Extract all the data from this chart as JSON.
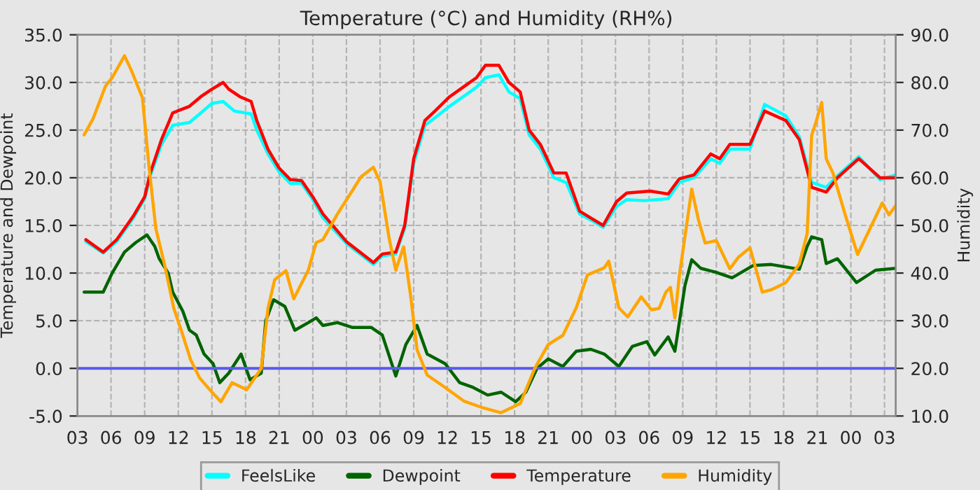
{
  "chart_data": {
    "type": "line",
    "title": "Temperature (°C) and Humidity (RH%)",
    "ylabel": "Temperature and Dewpoint",
    "y2label": "Humidity",
    "xlim": [
      3,
      76
    ],
    "xticks": [
      {
        "value": 3,
        "label": "03"
      },
      {
        "value": 6,
        "label": "06"
      },
      {
        "value": 9,
        "label": "09"
      },
      {
        "value": 12,
        "label": "12"
      },
      {
        "value": 15,
        "label": "15"
      },
      {
        "value": 18,
        "label": "18"
      },
      {
        "value": 21,
        "label": "21"
      },
      {
        "value": 24,
        "label": "00"
      },
      {
        "value": 27,
        "label": "03"
      },
      {
        "value": 30,
        "label": "06"
      },
      {
        "value": 33,
        "label": "09"
      },
      {
        "value": 36,
        "label": "12"
      },
      {
        "value": 39,
        "label": "15"
      },
      {
        "value": 42,
        "label": "18"
      },
      {
        "value": 45,
        "label": "21"
      },
      {
        "value": 48,
        "label": "00"
      },
      {
        "value": 51,
        "label": "03"
      },
      {
        "value": 54,
        "label": "06"
      },
      {
        "value": 57,
        "label": "09"
      },
      {
        "value": 60,
        "label": "12"
      },
      {
        "value": 63,
        "label": "15"
      },
      {
        "value": 66,
        "label": "18"
      },
      {
        "value": 69,
        "label": "21"
      },
      {
        "value": 72,
        "label": "00"
      },
      {
        "value": 75,
        "label": "03"
      }
    ],
    "ylim": [
      -5,
      35
    ],
    "yticks": [
      {
        "value": -5,
        "label": "-5.0"
      },
      {
        "value": 0,
        "label": "0.0"
      },
      {
        "value": 5,
        "label": "5.0"
      },
      {
        "value": 10,
        "label": "10.0"
      },
      {
        "value": 15,
        "label": "15.0"
      },
      {
        "value": 20,
        "label": "20.0"
      },
      {
        "value": 25,
        "label": "25.0"
      },
      {
        "value": 30,
        "label": "30.0"
      },
      {
        "value": 35,
        "label": "35.0"
      }
    ],
    "y2lim": [
      10,
      90
    ],
    "y2ticks": [
      {
        "value": 10,
        "label": "10.0"
      },
      {
        "value": 20,
        "label": "20.0"
      },
      {
        "value": 30,
        "label": "30.0"
      },
      {
        "value": 40,
        "label": "40.0"
      },
      {
        "value": 50,
        "label": "50.0"
      },
      {
        "value": 60,
        "label": "60.0"
      },
      {
        "value": 70,
        "label": "70.0"
      },
      {
        "value": 80,
        "label": "80.0"
      },
      {
        "value": 90,
        "label": "90.0"
      }
    ],
    "grid": true,
    "legend": "bottom",
    "marker": "none",
    "line_style": "solid",
    "ref_lines": [
      {
        "axis": "y",
        "value": 0,
        "color": "#5a5aee"
      }
    ],
    "series": [
      {
        "name": "FeelsLike",
        "color": "#00ffff",
        "x": [
          3.75,
          5.3,
          6.5,
          8,
          9,
          9.5,
          10.5,
          11.5,
          13,
          14,
          15,
          16,
          17,
          18.5,
          19,
          20,
          21,
          22,
          23,
          24,
          24.9,
          27,
          29.4,
          30.2,
          31.4,
          32.2,
          33,
          34,
          34.9,
          36.2,
          37.4,
          38.6,
          39.4,
          40.6,
          41.5,
          42.5,
          43.3,
          44.3,
          45.5,
          46.6,
          47.8,
          48.9,
          49.9,
          51.1,
          52,
          53.6,
          55.7,
          56.7,
          58,
          59.5,
          60.3,
          61.2,
          63,
          64.3,
          66.2,
          67.4,
          68.5,
          69.8,
          70.8,
          72.7,
          74.6,
          76
        ],
        "values": [
          13.3,
          12.1,
          13.3,
          15.8,
          17.8,
          20.2,
          23.5,
          25.5,
          25.8,
          26.8,
          27.8,
          28,
          27,
          26.7,
          25,
          22.5,
          20.6,
          19.4,
          19.4,
          17.7,
          15.8,
          13.1,
          10.9,
          11.8,
          12,
          14.7,
          21.5,
          25.5,
          26.3,
          27.5,
          28.5,
          29.5,
          30.5,
          30.8,
          29,
          28.3,
          24.5,
          23,
          20,
          19.5,
          16.2,
          15.5,
          14.8,
          17,
          17.7,
          17.6,
          17.8,
          19.5,
          20,
          22,
          21.5,
          23,
          23,
          27.7,
          26.5,
          24.3,
          19.5,
          19,
          20.2,
          22.2,
          19.8,
          20.3
        ]
      },
      {
        "name": "Dewpoint",
        "color": "#006400",
        "x": [
          3.6,
          5.3,
          6.1,
          7.2,
          8.2,
          9.2,
          9.9,
          10.3,
          11.1,
          11.5,
          12.4,
          13,
          13.6,
          14.3,
          15.1,
          15.7,
          16.5,
          17.6,
          18.4,
          19.4,
          19.8,
          20.5,
          21.5,
          22.4,
          23.6,
          24.3,
          24.9,
          26.2,
          27.5,
          29.2,
          30.2,
          31.4,
          32.3,
          33.3,
          34.2,
          35.8,
          37.1,
          38.3,
          39.6,
          40.8,
          42.1,
          43,
          44,
          45,
          46.3,
          47.5,
          48.8,
          50,
          51.3,
          52.5,
          53.8,
          54.5,
          55.7,
          56.3,
          57.2,
          57.8,
          58.6,
          59.9,
          61.4,
          63.3,
          64.9,
          67.4,
          68.1,
          68.5,
          69.4,
          69.8,
          70.8,
          72.5,
          74.2,
          76
        ],
        "values": [
          8,
          8,
          10,
          12.2,
          13.2,
          14,
          12.8,
          11.5,
          10,
          8,
          6,
          4,
          3.5,
          1.5,
          0.5,
          -1.5,
          -0.5,
          1.5,
          -1.2,
          -0.5,
          5,
          7.2,
          6.5,
          4,
          4.8,
          5.3,
          4.5,
          4.8,
          4.3,
          4.3,
          3.5,
          -0.8,
          2.5,
          4.5,
          1.5,
          0.5,
          -1.5,
          -2,
          -2.8,
          -2.5,
          -3.5,
          -2.5,
          0,
          1,
          0.2,
          1.8,
          2,
          1.5,
          0.2,
          2.3,
          2.8,
          1.4,
          3.3,
          1.8,
          8.7,
          11.4,
          10.5,
          10.1,
          9.5,
          10.8,
          10.9,
          10.4,
          12.8,
          13.8,
          13.5,
          11,
          11.5,
          9,
          10.3,
          10.5
        ]
      },
      {
        "name": "Temperature",
        "color": "#ff0000",
        "x": [
          3.75,
          5.3,
          6.5,
          8,
          9,
          9.5,
          10.5,
          11.5,
          13,
          14,
          15,
          16,
          16.5,
          17.5,
          18.5,
          19,
          20,
          21,
          22,
          23,
          24,
          24.9,
          27,
          29.4,
          30.2,
          31.4,
          32.2,
          33,
          34,
          34.9,
          36.2,
          37.4,
          38.6,
          39.4,
          40.6,
          41.5,
          42.5,
          43.3,
          44.3,
          45.5,
          46.6,
          47.8,
          48.9,
          49.9,
          51.1,
          52,
          54.1,
          55.7,
          56.7,
          58,
          59.5,
          60.3,
          61.2,
          63,
          64.3,
          66.2,
          67.4,
          68.5,
          69.8,
          70.8,
          72.7,
          74.6,
          76
        ],
        "values": [
          13.5,
          12.2,
          13.5,
          16,
          18,
          20.5,
          24,
          26.8,
          27.5,
          28.5,
          29.3,
          30,
          29.3,
          28.5,
          28,
          26,
          23,
          21,
          19.8,
          19.7,
          18,
          16.2,
          13.3,
          11.1,
          12,
          12.2,
          15,
          22,
          26,
          27,
          28.5,
          29.5,
          30.5,
          31.8,
          31.8,
          30,
          29,
          25,
          23.5,
          20.5,
          20.5,
          16.5,
          15.7,
          15,
          17.5,
          18.4,
          18.6,
          18.3,
          19.9,
          20.3,
          22.5,
          22,
          23.5,
          23.5,
          27,
          26,
          24,
          19,
          18.5,
          20,
          22,
          20,
          20
        ]
      },
      {
        "name": "Humidity",
        "color": "#ffa500",
        "axis": "y2",
        "x": [
          3.6,
          4.4,
          5.5,
          6.1,
          7.2,
          7.8,
          8.8,
          9.4,
          10,
          10.8,
          11.6,
          12.3,
          13.1,
          13.9,
          15,
          15.8,
          16.8,
          18.1,
          19.4,
          20,
          20.6,
          21.6,
          22.3,
          23.6,
          24.3,
          24.9,
          26.2,
          27.5,
          28.3,
          29.4,
          30,
          30.8,
          31.4,
          32.1,
          32.7,
          33.3,
          34.2,
          35.8,
          37.5,
          39.2,
          40.8,
          42.5,
          43.8,
          45,
          46.3,
          47.5,
          48.5,
          50,
          50.4,
          51.3,
          52.1,
          53.3,
          54.2,
          54.9,
          55.5,
          55.9,
          56.3,
          56.7,
          57.3,
          57.8,
          58.4,
          59,
          60,
          61.2,
          62,
          63,
          64.1,
          64.9,
          66.2,
          67.4,
          68.1,
          68.5,
          68.9,
          69.4,
          69.8,
          70.4,
          71.5,
          72.6,
          73.5,
          74.8,
          75.4,
          76
        ],
        "values": [
          69,
          72.4,
          79.2,
          81,
          85.6,
          82.6,
          76.8,
          62,
          49.3,
          41.5,
          32.6,
          27.7,
          21.8,
          18,
          15,
          13,
          17,
          15.5,
          20,
          32.6,
          38.6,
          40.5,
          34.6,
          40.6,
          46.4,
          47,
          52.4,
          57.2,
          60.2,
          62.2,
          59.2,
          47.4,
          40.6,
          45.5,
          35.7,
          23.9,
          18.6,
          16,
          13.1,
          11.7,
          10.7,
          12.6,
          20,
          25,
          26.9,
          32.7,
          39.6,
          41.1,
          42.5,
          32.7,
          30.8,
          35,
          32.3,
          32.6,
          36,
          37,
          30.6,
          39.5,
          49.3,
          57.6,
          51.2,
          46.3,
          46.8,
          40.9,
          43.4,
          45.3,
          36,
          36.5,
          38,
          41.9,
          48.3,
          68.9,
          71.8,
          75.8,
          64,
          61,
          52.2,
          43.9,
          48.3,
          54.7,
          52.2,
          54.2
        ]
      }
    ]
  }
}
